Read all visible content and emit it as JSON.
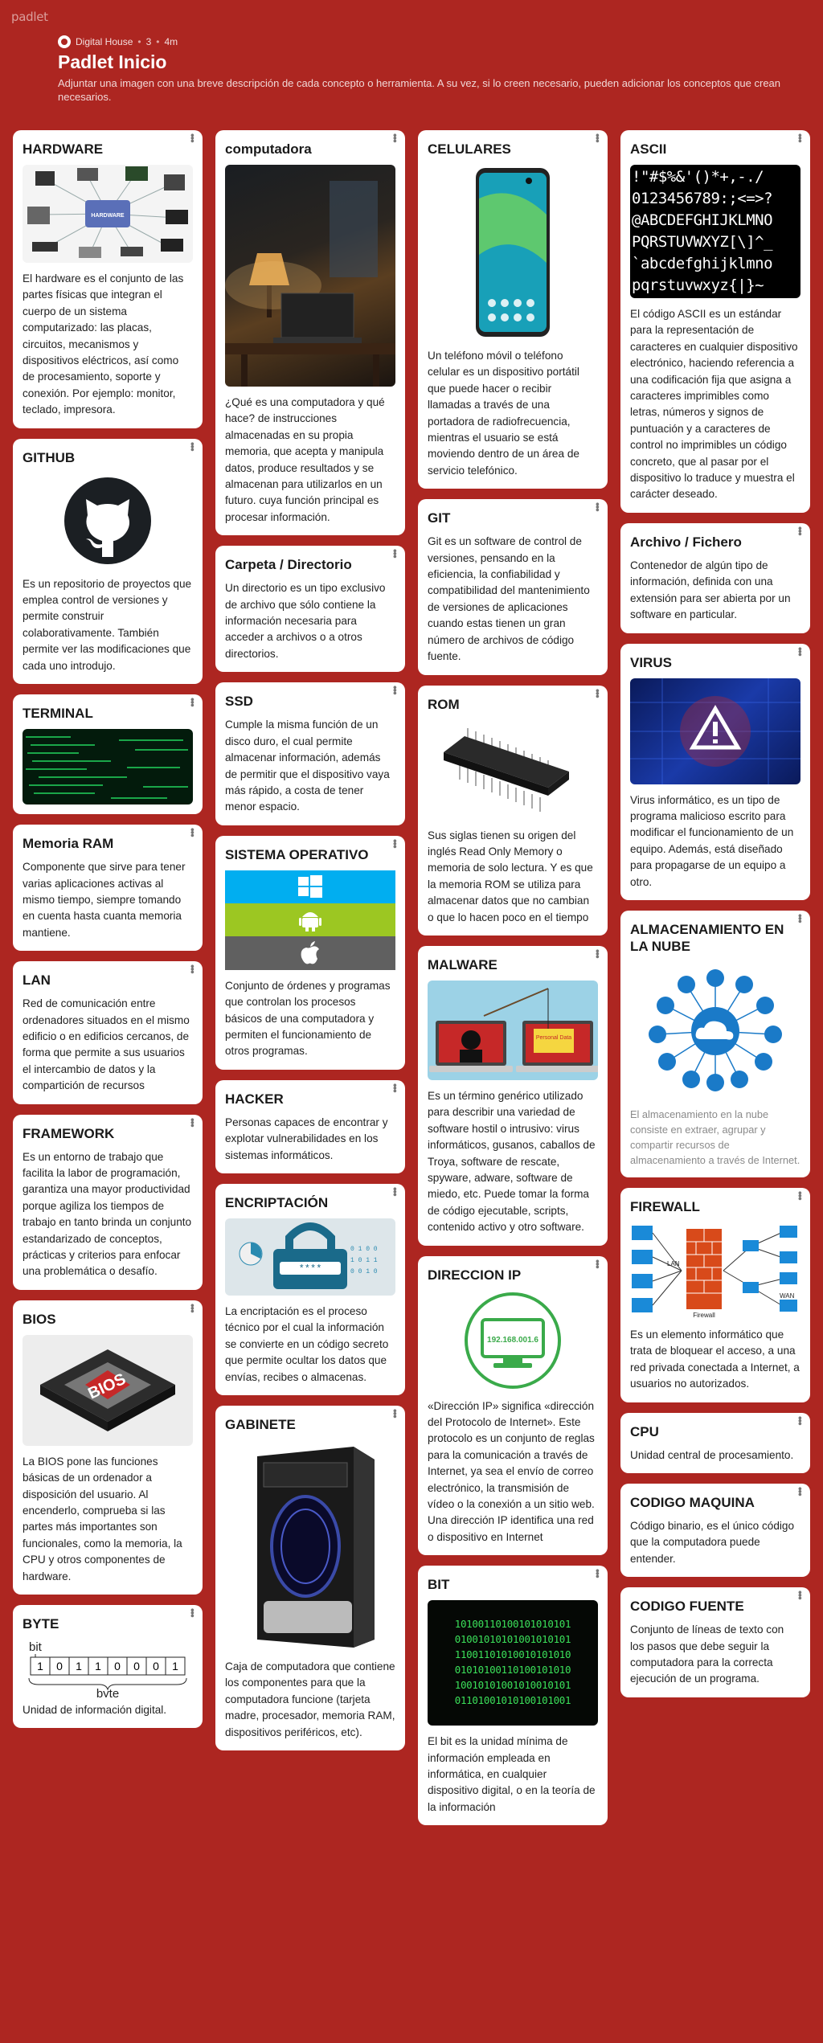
{
  "app": {
    "brand": "padlet"
  },
  "header": {
    "author": "Digital House",
    "likes": "3",
    "time": "4m",
    "title": "Padlet Inicio",
    "description": "Adjuntar una imagen con una breve descripción de cada concepto o herramienta. A su vez, si lo creen necesario, pueden adicionar los conceptos que crean necesarios."
  },
  "cards": {
    "hardware": {
      "title": "HARDWARE",
      "body": "El hardware es el conjunto de las partes físicas que integran el cuerpo de un sistema computarizado: las placas, circuitos, mecanismos y dispositivos eléctricos, así como de procesamiento, soporte y conexión. Por ejemplo: monitor, teclado, impresora.",
      "img_label": "HARDWARE"
    },
    "github": {
      "title": "GITHUB",
      "body": "Es un repositorio de proyectos que emplea control de versiones y permite construir colaborativamente. También permite ver las modificaciones que cada uno introdujo."
    },
    "terminal": {
      "title": "TERMINAL"
    },
    "ram": {
      "title": "Memoria RAM",
      "body": "Componente que sirve para tener varias aplicaciones activas al mismo tiempo, siempre tomando en cuenta hasta cuanta memoria mantiene."
    },
    "lan": {
      "title": "LAN",
      "body": "Red de comunicación entre ordenadores situados en el mismo edificio o en edificios cercanos, de forma que permite a sus usuarios el intercambio de datos y la compartición de recursos"
    },
    "framework": {
      "title": "FRAMEWORK",
      "body": "Es un entorno de trabajo que facilita la labor de programación, garantiza una mayor productividad porque agiliza los tiempos de trabajo en tanto brinda un conjunto estandarizado de conceptos, prácticas y criterios para enfocar una problemática o desafío."
    },
    "bios": {
      "title": "BIOS",
      "body": "La BIOS pone las funciones básicas de un ordenador a disposición del usuario. Al encenderlo, comprueba si las partes más importantes son funcionales, como la memoria, la CPU y otros componentes de hardware.",
      "img_label": "BIOS"
    },
    "byte": {
      "title": "BYTE",
      "body": "Unidad de información digital.",
      "bit_label": "bit",
      "byte_label": "byte",
      "bits": [
        "1",
        "0",
        "1",
        "1",
        "0",
        "0",
        "0",
        "1"
      ]
    },
    "computadora": {
      "title": "computadora",
      "body": "¿Qué es una computadora y qué hace? de instrucciones almacenadas en su propia memoria, que acepta y manipula datos, produce resultados y se almacenan para utilizarlos en un futuro. cuya función principal es procesar información."
    },
    "carpeta": {
      "title": "Carpeta / Directorio",
      "body": "Un directorio es un tipo exclusivo de archivo que sólo contiene la información necesaria para acceder a archivos o a otros directorios."
    },
    "ssd": {
      "title": "SSD",
      "body": "Cumple la misma función de un disco duro, el cual permite almacenar información, además de permitir que el dispositivo vaya más rápido, a costa de tener menor espacio."
    },
    "so": {
      "title": "SISTEMA OPERATIVO",
      "body": "Conjunto de órdenes y programas que controlan los procesos básicos de una computadora y permiten el funcionamiento de otros programas."
    },
    "hacker": {
      "title": "HACKER",
      "body": "Personas capaces de encontrar y explotar vulnerabilidades en los sistemas informáticos."
    },
    "encriptacion": {
      "title": "ENCRIPTACIÓN",
      "body": "La encriptación es el proceso técnico por el cual la información se convierte en un código secreto que permite ocultar los datos que envías, recibes o almacenas."
    },
    "gabinete": {
      "title": "GABINETE",
      "body": "Caja de computadora que contiene los componentes para que la computadora funcione (tarjeta madre, procesador, memoria RAM, dispositivos periféricos, etc)."
    },
    "celulares": {
      "title": "CELULARES",
      "body": "Un teléfono móvil o teléfono celular es un dispositivo portátil que puede hacer o recibir llamadas a través de una portadora de radiofrecuencia, mientras el usuario se está moviendo dentro de un área de servicio telefónico."
    },
    "git": {
      "title": "GIT",
      "body": "Git es un software de control de versiones, pensando en la eficiencia, la confiabilidad y compatibilidad del mantenimiento de versiones de aplicaciones cuando estas tienen un gran número de archivos de código fuente."
    },
    "rom": {
      "title": "ROM",
      "body": "Sus siglas tienen su origen del inglés Read Only Memory o memoria de solo lectura. Y es que la memoria ROM se utiliza para almacenar datos que no cambian o que lo hacen poco en el tiempo"
    },
    "malware": {
      "title": "MALWARE",
      "body": "Es un término genérico utilizado para describir una variedad de software hostil o intrusivo: virus informáticos, gusanos, caballos de Troya, software de rescate, spyware, adware, software de miedo, etc. Puede tomar la forma de código ejecutable, scripts, contenido activo y otro software.",
      "img_label": "Personal Data"
    },
    "ip": {
      "title": "DIRECCION IP",
      "body": "«Dirección IP» significa «dirección del Protocolo de Internet». Este protocolo es un conjunto de reglas para la comunicación a través de Internet, ya sea el envío de correo electrónico, la transmisión de vídeo o la conexión a un sitio web. Una dirección IP identifica una red o dispositivo en Internet",
      "img_label": "192.168.001.6"
    },
    "bit": {
      "title": "BIT",
      "body": "El bit es la unidad mínima de información empleada en informática, en cualquier dispositivo digital, o en la teoría de la información",
      "img_rows": [
        "10100110100101010101",
        "01001010101001010101",
        "11001101010010101010",
        "01010100110100101010",
        "10010101001010010101",
        "01101001010100101001"
      ]
    },
    "ascii": {
      "title": "ASCII",
      "body": "El código ASCII es un estándar para la representación de caracteres en cualquier dispositivo electrónico, haciendo referencia a una codificación fija que asigna a caracteres imprimibles como letras, números y signos de puntuación y a caracteres de control no imprimibles un código concreto, que al pasar por el dispositivo lo traduce y muestra el carácter deseado.",
      "img_lines": [
        "!\"#$%&'()*+,-./",
        "0123456789:;<=>?",
        "@ABCDEFGHIJKLMNO",
        "PQRSTUVWXYZ[\\]^_",
        "`abcdefghijklmno",
        "pqrstuvwxyz{|}~"
      ]
    },
    "archivo": {
      "title": "Archivo / Fichero",
      "body": "Contenedor de algún tipo de información, definida con una extensión para ser abierta por un software en particular."
    },
    "virus": {
      "title": "VIRUS",
      "body": "Virus informático, es un tipo de programa malicioso escrito para modificar el funcionamiento de un equipo. Además, está diseñado para propagarse de un equipo a otro."
    },
    "nube": {
      "title": "ALMACENAMIENTO EN LA NUBE",
      "body": "El almacenamiento en la nube consiste en extraer, agrupar y compartir recursos de almacenamiento a través de Internet."
    },
    "firewall": {
      "title": "FIREWALL",
      "body": "Es un elemento informático que trata de bloquear el acceso, a una red privada conectada a Internet, a usuarios no autorizados.",
      "img_lan": "LAN",
      "img_wan": "WAN",
      "img_fw": "Firewall"
    },
    "cpu": {
      "title": "CPU",
      "body": "Unidad central de procesamiento."
    },
    "codigo_maquina": {
      "title": "CODIGO MAQUINA",
      "body": "Código binario, es el único código que la computadora puede entender."
    },
    "codigo_fuente": {
      "title": "CODIGO FUENTE",
      "body": "Conjunto de líneas de texto con los pasos que debe seguir la computadora para la correcta ejecución de un programa."
    }
  },
  "colors": {
    "background": "#ad2621",
    "card": "#ffffff"
  }
}
